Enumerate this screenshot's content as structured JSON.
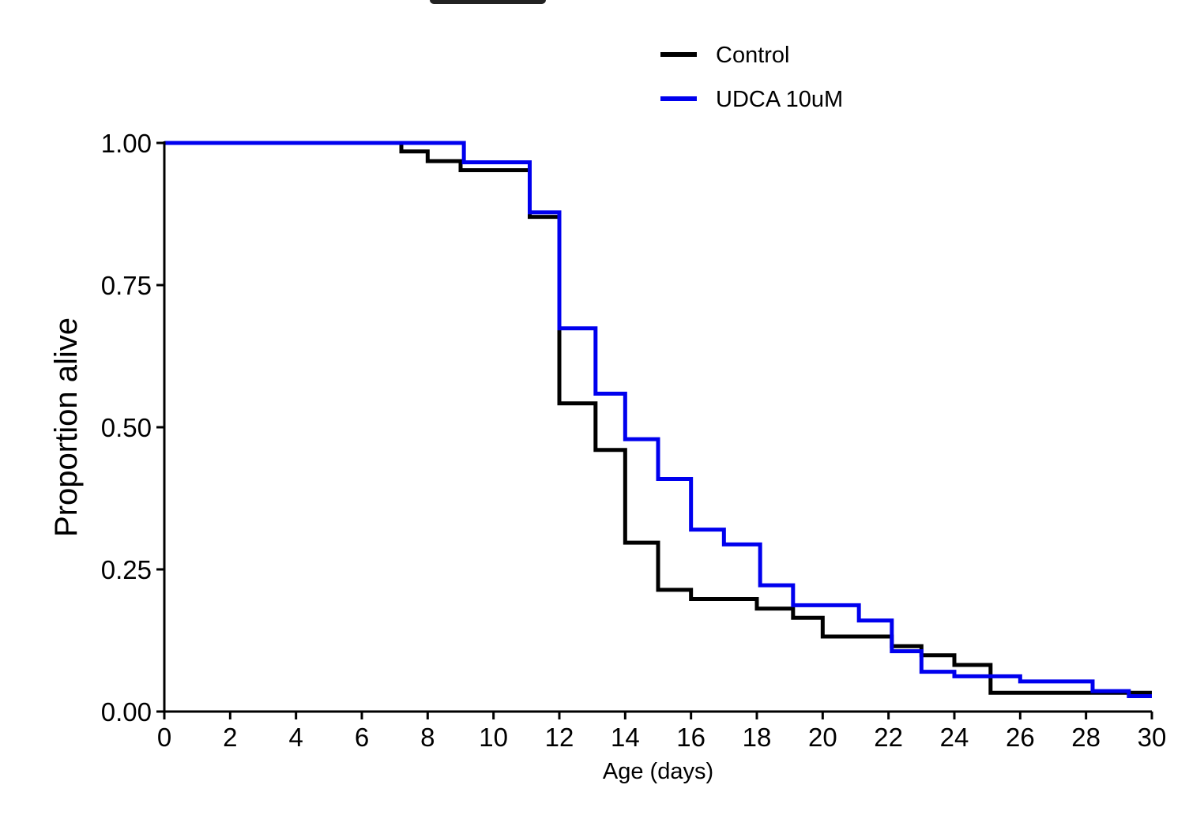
{
  "chart_data": {
    "type": "line",
    "subtype": "step",
    "title": "",
    "xlabel": "Age (days)",
    "ylabel": "Proportion alive",
    "xlim": [
      0,
      30
    ],
    "ylim": [
      0,
      1
    ],
    "xticks": [
      0,
      2,
      4,
      6,
      8,
      10,
      12,
      14,
      16,
      18,
      20,
      22,
      24,
      26,
      28,
      30
    ],
    "yticks": [
      0,
      0.25,
      0.5,
      0.75,
      1.0
    ],
    "ytick_labels": [
      "0.00",
      "0.25",
      "0.50",
      "0.75",
      "1.00"
    ],
    "grid": false,
    "legend_position": "top",
    "series": [
      {
        "name": "Control",
        "color": "#000000",
        "x": [
          0,
          7.2,
          8.0,
          9.0,
          11.1,
          12.0,
          13.1,
          14.0,
          15.0,
          16.0,
          18.0,
          19.1,
          20.0,
          22.1,
          23.0,
          24.0,
          25.1,
          30
        ],
        "y": [
          1.0,
          0.985,
          0.968,
          0.952,
          0.87,
          0.542,
          0.46,
          0.297,
          0.214,
          0.198,
          0.181,
          0.165,
          0.132,
          0.115,
          0.099,
          0.082,
          0.033,
          0.033
        ]
      },
      {
        "name": "UDCA 10uM",
        "color": "#0000ee",
        "x": [
          0,
          9.1,
          11.1,
          12.0,
          13.1,
          14.0,
          15.0,
          16.0,
          17.0,
          18.1,
          19.1,
          21.1,
          22.1,
          23.0,
          24.0,
          26.0,
          28.2,
          29.3,
          30
        ],
        "y": [
          1.0,
          0.966,
          0.878,
          0.674,
          0.559,
          0.479,
          0.409,
          0.32,
          0.294,
          0.222,
          0.187,
          0.16,
          0.106,
          0.07,
          0.062,
          0.053,
          0.036,
          0.027,
          0.027
        ]
      }
    ]
  }
}
